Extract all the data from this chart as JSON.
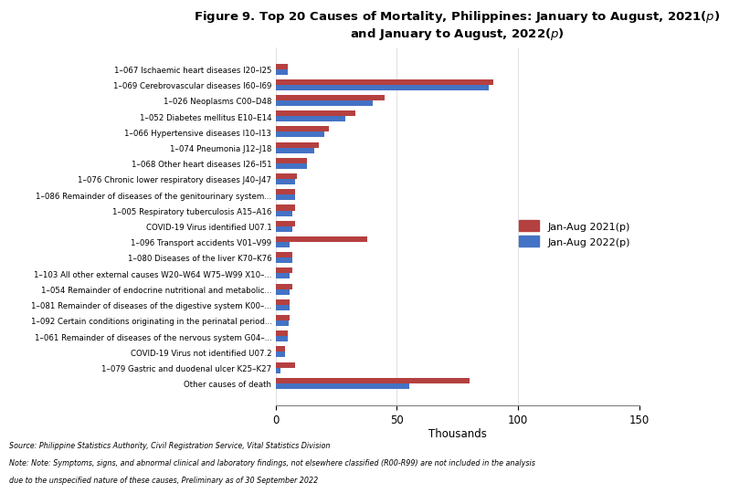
{
  "categories": [
    "1–067 Ischaemic heart diseases I20–I25",
    "1–069 Cerebrovascular diseases I60–I69",
    "1–026 Neoplasms C00–D48",
    "1–052 Diabetes mellitus E10–E14",
    "1–066 Hypertensive diseases I10–I13",
    "1–074 Pneumonia J12–J18",
    "1–068 Other heart diseases I26–I51",
    "1–076 Chronic lower respiratory diseases J40–J47",
    "1–086 Remainder of diseases of the genitourinary system...",
    "1–005 Respiratory tuberculosis A15–A16",
    "COVID-19 Virus identified U07.1",
    "1–096 Transport accidents V01–V99",
    "1–080 Diseases of the liver K70–K76",
    "1–103 All other external causes W20–W64 W75–W99 X10–...",
    "1–054 Remainder of endocrine nutritional and metabolic...",
    "1–081 Remainder of diseases of the digestive system K00–...",
    "1–092 Certain conditions originating in the perinatal period...",
    "1–061 Remainder of diseases of the nervous system G04–...",
    "COVID-19 Virus not identified U07.2",
    "1–079 Gastric and duodenal ulcer K25–K27",
    "Other causes of death"
  ],
  "values_2021": [
    5,
    90,
    45,
    33,
    22,
    18,
    13,
    9,
    8,
    8,
    8,
    38,
    7,
    7,
    7,
    6,
    6,
    5,
    4,
    8,
    80
  ],
  "values_2022": [
    5,
    88,
    40,
    29,
    20,
    16,
    13,
    8,
    8,
    7,
    7,
    6,
    7,
    6,
    6,
    6,
    5.5,
    5,
    4,
    2,
    55
  ],
  "color_2021": "#b54040",
  "color_2022": "#4472c4",
  "legend_2021": "Jan-Aug 2021(p)",
  "legend_2022": "Jan-Aug 2022(p)",
  "xlabel": "Thousands",
  "xlim": [
    0,
    150
  ],
  "xticks": [
    0,
    50,
    100,
    150
  ],
  "footnote_line1": "Source: Philippine Statistics Authority, Civil Registration Service, Vital Statistics Division",
  "footnote_line2": "Note: Note: Symptoms, signs, and abnormal clinical and laboratory findings, not elsewhere classified (R00-R99) are not included in the analysis",
  "footnote_line3": "due to the unspecified nature of these causes, Preliminary as of 30 September 2022",
  "bar_height": 0.35,
  "title": "Figure 9. Top 20 Causes of Mortality, Philippines: January to August, 2021($p$)\nand January to August, 2022($p$)"
}
